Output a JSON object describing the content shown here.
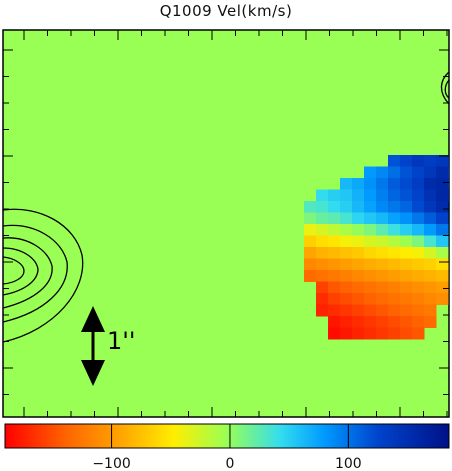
{
  "title": "Q1009 Vel(km/s)",
  "chart_data": {
    "type": "heatmap",
    "title": "Q1009 Vel(km/s)",
    "xlabel": "",
    "ylabel": "",
    "background_color": "#99ff55",
    "colormap": [
      "#ff0000",
      "#ff6600",
      "#ffaa00",
      "#ffee00",
      "#99ff55",
      "#33ddee",
      "#0099ff",
      "#0044cc",
      "#001188"
    ],
    "colorbar": {
      "range": [
        -190,
        185
      ],
      "ticks": [
        -100,
        0,
        100
      ]
    },
    "velocity_map": {
      "origin_row_label": "top",
      "rows": [
        {
          "start_col": 7,
          "values": [
            130,
            140,
            150,
            145,
            150,
            160
          ]
        },
        {
          "start_col": 5,
          "values": [
            90,
            100,
            115,
            130,
            140,
            150,
            160,
            155
          ]
        },
        {
          "start_col": 3,
          "values": [
            70,
            80,
            95,
            110,
            125,
            135,
            145,
            160,
            165,
            160
          ]
        },
        {
          "start_col": 1,
          "values": [
            45,
            55,
            60,
            75,
            90,
            105,
            120,
            130,
            140,
            155,
            165,
            170
          ]
        },
        {
          "start_col": 0,
          "values": [
            30,
            35,
            45,
            55,
            70,
            85,
            100,
            110,
            120,
            135,
            150,
            160
          ]
        },
        {
          "start_col": 0,
          "values": [
            10,
            20,
            25,
            35,
            50,
            60,
            70,
            85,
            95,
            110,
            125,
            140
          ]
        },
        {
          "start_col": 0,
          "values": [
            -40,
            -30,
            -20,
            -10,
            0,
            10,
            25,
            40,
            55,
            70,
            90,
            110
          ]
        },
        {
          "start_col": 0,
          "values": [
            -70,
            -60,
            -55,
            -45,
            -40,
            -30,
            -25,
            -15,
            -5,
            10,
            35,
            60
          ]
        },
        {
          "start_col": 0,
          "values": [
            -100,
            -90,
            -85,
            -80,
            -75,
            -65,
            -60,
            -55,
            -50,
            -45,
            -30,
            -10
          ]
        },
        {
          "start_col": 0,
          "values": [
            -120,
            -115,
            -110,
            -105,
            -100,
            -95,
            -90,
            -85,
            -80,
            -75,
            -70,
            -60
          ]
        },
        {
          "start_col": 0,
          "values": [
            -140,
            -135,
            -130,
            -125,
            -120,
            -115,
            -110,
            -105,
            -100,
            -95,
            -90,
            -85
          ]
        },
        {
          "start_col": 1,
          "values": [
            -160,
            -150,
            -145,
            -140,
            -135,
            -130,
            -125,
            -120,
            -115,
            -110,
            -105
          ]
        },
        {
          "start_col": 1,
          "values": [
            -170,
            -160,
            -155,
            -150,
            -145,
            -140,
            -135,
            -130,
            -125,
            -120,
            -115
          ]
        },
        {
          "start_col": 1,
          "values": [
            -175,
            -170,
            -165,
            -160,
            -155,
            -150,
            -145,
            -140,
            -135,
            -130
          ]
        },
        {
          "start_col": 2,
          "values": [
            -180,
            -175,
            -170,
            -165,
            -160,
            -155,
            -150,
            -145,
            -140
          ]
        },
        {
          "start_col": 2,
          "values": [
            -185,
            -180,
            -175,
            -170,
            -165,
            -160,
            -155,
            -150
          ]
        }
      ]
    },
    "contours": {
      "levels": 5,
      "peak_position": "left-middle"
    },
    "scale_bar": {
      "label": "1''"
    }
  }
}
